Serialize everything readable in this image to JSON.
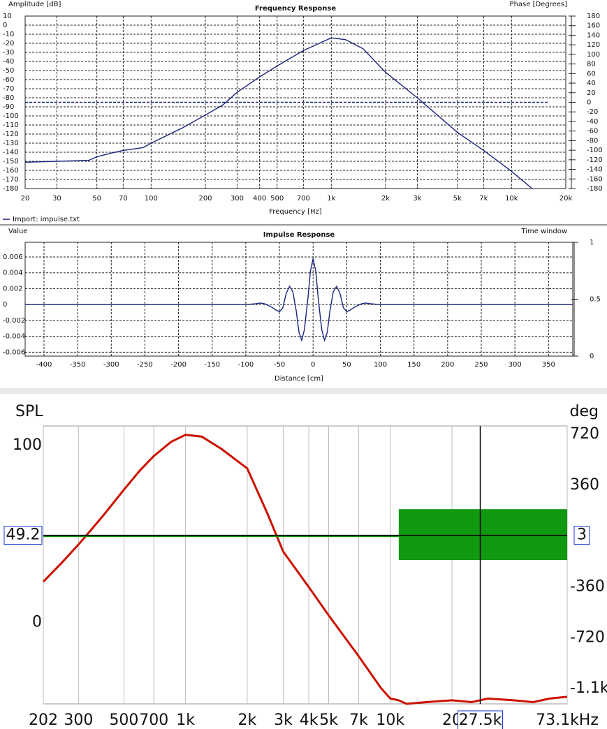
{
  "chart_data": [
    {
      "type": "line",
      "title": "Frequency Response",
      "ylabel": "Amplitude [dB]",
      "y2label": "Phase [Degrees]",
      "xlabel": "Frequency [Hz]",
      "xlog": true,
      "xlim": [
        20,
        20000
      ],
      "xticks": [
        20,
        30,
        50,
        70,
        100,
        200,
        300,
        400,
        500,
        700,
        {
          "value": 1000,
          "label": "1k"
        },
        {
          "value": 2000,
          "label": "2k"
        },
        {
          "value": 3000,
          "label": "3k"
        },
        {
          "value": 5000,
          "label": "5k"
        },
        {
          "value": 7000,
          "label": "7k"
        },
        {
          "value": 10000,
          "label": "10k"
        },
        {
          "value": 20000,
          "label": "20k"
        }
      ],
      "ylim": [
        -180,
        10
      ],
      "yticks": [
        10,
        0,
        -10,
        -20,
        -30,
        -40,
        -50,
        -60,
        -70,
        -80,
        -90,
        -100,
        -110,
        -120,
        -130,
        -140,
        -150,
        -160,
        -170,
        -180
      ],
      "y2lim": [
        -180,
        180
      ],
      "y2ticks": [
        180,
        160,
        140,
        120,
        100,
        80,
        60,
        40,
        20,
        0,
        -20,
        -40,
        -60,
        -80,
        -100,
        -120,
        -140,
        -160,
        -180
      ],
      "grid": true,
      "legend": "bottom-left",
      "series": [
        {
          "name": "Import: impulse.txt",
          "color": "#1a237e",
          "x": [
            20,
            30,
            45,
            50,
            60,
            70,
            90,
            100,
            150,
            200,
            250,
            300,
            400,
            500,
            700,
            1000,
            1200,
            1500,
            2000,
            3000,
            5000,
            7000,
            10000,
            13000
          ],
          "values": [
            -151,
            -150,
            -149,
            -145,
            -141,
            -138,
            -135,
            -130,
            -113,
            -99,
            -88,
            -74,
            -57,
            -45,
            -28,
            -14,
            -16,
            -26,
            -52,
            -80,
            -118,
            -138,
            -161,
            -180
          ]
        },
        {
          "color": "#1a237e",
          "dashed": true,
          "axis": "y2",
          "x": [
            20,
            16000
          ],
          "values": [
            0,
            0
          ]
        }
      ]
    },
    {
      "type": "line",
      "title": "Impulse Response",
      "ylabel": "Value",
      "y2label": "Time window",
      "xlabel": "Distance [cm]",
      "xlim": [
        -428,
        386
      ],
      "xticks": [
        -400,
        -350,
        -300,
        -250,
        -200,
        -150,
        -100,
        -50,
        0,
        50,
        100,
        150,
        200,
        250,
        300,
        350
      ],
      "ylim": [
        -0.0065,
        0.00785
      ],
      "yticks": [
        0.006,
        0.004,
        0.002,
        0,
        -0.002,
        -0.004,
        -0.006
      ],
      "y2lim": [
        0,
        1
      ],
      "y2ticks": [
        1,
        0.5,
        0
      ],
      "grid": true,
      "series": [
        {
          "color": "#1a237e",
          "x": [
            -428,
            -100,
            -85,
            -78,
            -72,
            -62,
            -55,
            -50,
            -45,
            -40,
            -35,
            -30,
            -25,
            -21,
            -17,
            -13,
            -8,
            -4,
            0,
            4,
            8,
            13,
            17,
            21,
            25,
            30,
            35,
            40,
            45,
            50,
            55,
            62,
            72,
            78,
            85,
            100,
            386
          ],
          "values": [
            0,
            0,
            0.0001,
            0.0002,
            0.0001,
            -0.0003,
            -0.0007,
            -0.0009,
            -0.0004,
            0.0014,
            0.0023,
            0.0016,
            -0.0008,
            -0.0035,
            -0.0045,
            -0.0032,
            0.0005,
            0.0042,
            0.0058,
            0.0042,
            0.0005,
            -0.0032,
            -0.0045,
            -0.0035,
            -0.0008,
            0.0016,
            0.0023,
            0.0014,
            -0.0004,
            -0.0009,
            -0.0007,
            -0.0003,
            0.0001,
            0.0002,
            0.0001,
            0,
            0
          ]
        }
      ]
    },
    {
      "type": "line",
      "ylabel": "SPL",
      "y2label": "deg",
      "xlog": true,
      "xlim": [
        202,
        73100
      ],
      "xticks": [
        202,
        300,
        500,
        700,
        {
          "value": 1000,
          "label": "1k"
        },
        {
          "value": 2000,
          "label": "2k"
        },
        {
          "value": 3000,
          "label": "3k"
        },
        {
          "value": 4000,
          "label": "4k"
        },
        {
          "value": 5000,
          "label": "5k"
        },
        {
          "value": 7000,
          "label": "7k"
        },
        {
          "value": 10000,
          "label": "10k"
        },
        {
          "value": 20000,
          "label": "20"
        },
        {
          "value": 73100,
          "label": "73.1kHz"
        }
      ],
      "ylim": [
        -46,
        111
      ],
      "yticks": [
        100,
        0
      ],
      "y2lim": [
        -1188,
        779
      ],
      "y2ticks": [
        720,
        360,
        -360,
        -720,
        {
          "value": -1080,
          "label": "-1.1k"
        }
      ],
      "grid": true,
      "cursor": {
        "x": {
          "value": 27500,
          "label": "27.5k"
        },
        "y": 49.2,
        "y2": 3
      },
      "series": [
        {
          "color": "#cc1100",
          "x": [
            202,
            250,
            300,
            350,
            400,
            500,
            600,
            700,
            850,
            1000,
            1200,
            1500,
            2000,
            2500,
            3000,
            4000,
            5000,
            7000,
            9000,
            10000,
            11000,
            12000,
            15000,
            20000,
            25000,
            30000,
            40000,
            50000,
            60000,
            73100
          ],
          "values": [
            23,
            34,
            44,
            53,
            61,
            75,
            86,
            94,
            102,
            106,
            105,
            98,
            87,
            62,
            40,
            20,
            4,
            -19,
            -37,
            -43,
            -44,
            -46,
            -45,
            -44,
            -45,
            -43,
            -44,
            -45,
            -43,
            -42
          ]
        },
        {
          "color": "#119911",
          "axis": "y2",
          "x": [
            202,
            7000,
            9000,
            11000
          ],
          "values": [
            0,
            0,
            0,
            0
          ]
        },
        {
          "color": "#119911",
          "axis": "y2",
          "band": true,
          "x": [
            11000,
            73100
          ],
          "upper": 190,
          "lower": -170
        }
      ]
    }
  ]
}
